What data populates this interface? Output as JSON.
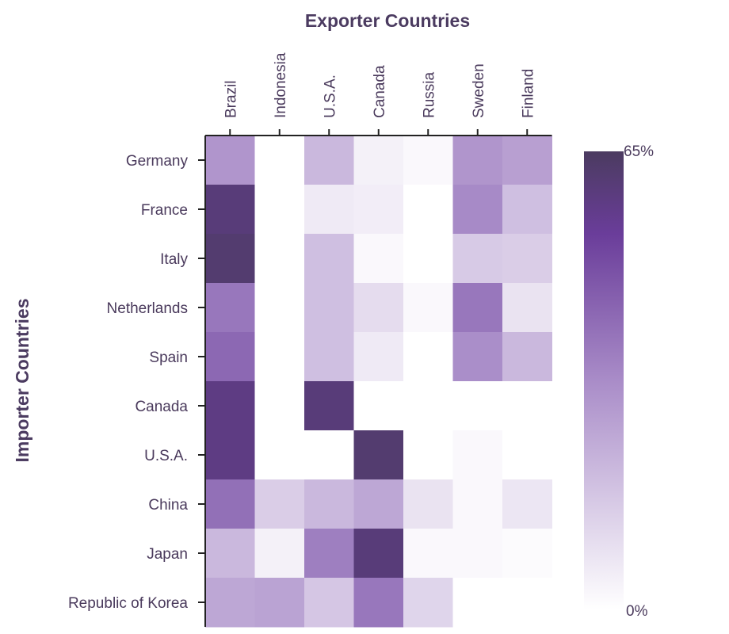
{
  "chart_data": {
    "type": "heatmap",
    "title": "Exporter Countries",
    "xlabel": "Exporter Countries",
    "ylabel": "Importer Countries",
    "x_categories": [
      "Brazil",
      "Indonesia",
      "U.S.A.",
      "Canada",
      "Russia",
      "Sweden",
      "Finland"
    ],
    "y_categories": [
      "Germany",
      "France",
      "Italy",
      "Netherlands",
      "Spain",
      "Canada",
      "U.S.A.",
      "China",
      "Japan",
      "Republic of Korea"
    ],
    "values": [
      [
        30,
        0,
        20,
        4,
        2,
        30,
        27
      ],
      [
        60,
        0,
        6,
        5,
        0,
        33,
        18
      ],
      [
        62,
        0,
        18,
        2,
        0,
        15,
        14
      ],
      [
        38,
        0,
        18,
        10,
        2,
        38,
        8
      ],
      [
        42,
        0,
        18,
        6,
        0,
        32,
        20
      ],
      [
        58,
        0,
        60,
        0,
        0,
        0,
        0
      ],
      [
        58,
        0,
        0,
        62,
        0,
        2,
        0
      ],
      [
        40,
        14,
        20,
        25,
        8,
        2,
        7
      ],
      [
        20,
        4,
        36,
        60,
        2,
        2,
        1
      ],
      [
        25,
        26,
        16,
        38,
        12,
        0,
        0
      ]
    ],
    "colorbar": {
      "min_label": "0%",
      "max_label": "65%",
      "min": 0,
      "max": 65
    },
    "colors": {
      "low": "#ffffff",
      "mid": "#a98cc8",
      "high": "#6a3d9a",
      "top": "#4b3b60"
    }
  }
}
